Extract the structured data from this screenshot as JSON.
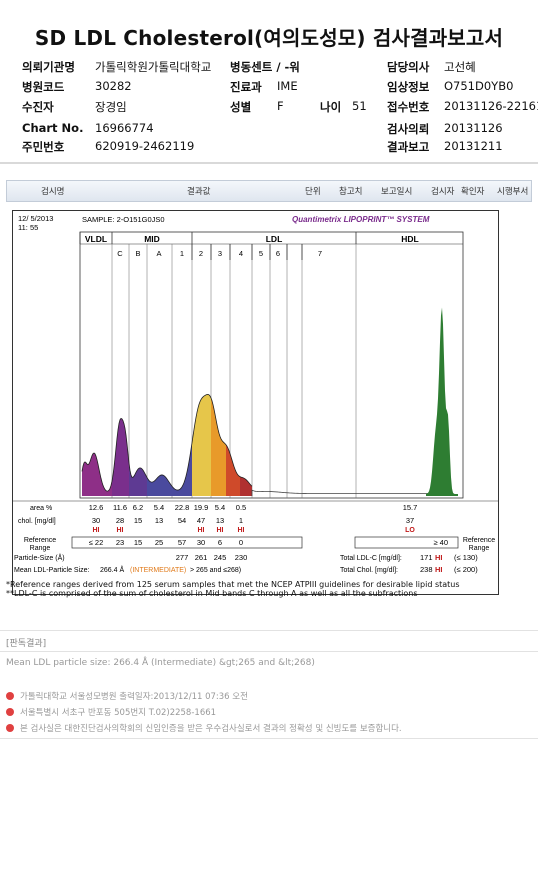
{
  "title": "SD LDL Cholesterol(여의도성모) 검사결과보고서",
  "header": {
    "institution_label": "의뢰기관명",
    "institution": "가톨릭학원가톨릭대학교",
    "ward_label": "병동센트 / -워",
    "ward": "",
    "doctor_label": "담당의사",
    "doctor": "고선혜",
    "hospital_code_label": "병원코드",
    "hospital_code": "30282",
    "dept_label": "진료과",
    "dept": "IME",
    "clinical_info_label": "임상정보",
    "clinical_info": "O751D0YB0",
    "patient_label": "수진자",
    "patient": "장경임",
    "sex_label": "성별",
    "sex": "F",
    "age_label": "나이",
    "age": "51",
    "receipt_label": "접수번호",
    "receipt": "20131126-22161",
    "chart_label": "Chart No.",
    "chart": "16966774",
    "request_label": "검사의뢰",
    "request": "20131126",
    "resident_label": "주민번호",
    "resident": "620919-2462119",
    "report_label": "결과보고",
    "report": "20131211"
  },
  "tabs": [
    "검시명",
    "결과값",
    "단위",
    "참고치",
    "보고일시",
    "검시자",
    "확인자",
    "시행부서"
  ],
  "chart_data": {
    "type": "area",
    "date": "12/ 5/2013",
    "time": "11: 55",
    "sample": "SAMPLE:   2-O151G0JS0",
    "brand": "Quantimetrix LIPOPRINT™ SYSTEM",
    "regions": [
      "VLDL",
      "MID",
      "LDL",
      "HDL"
    ],
    "bands": [
      "C",
      "B",
      "A",
      "1",
      "2",
      "3",
      "4",
      "5",
      "6",
      "7"
    ],
    "area_label": "area %",
    "area": {
      "VLDL": 12.6,
      "C": 11.6,
      "B": 6.2,
      "A": 5.4,
      "1": 22.8,
      "2": 19.9,
      "3": 5.4,
      "4": 0.5,
      "HDL": 15.7
    },
    "chol_label": "chol. [mg/dl]",
    "chol": [
      {
        "band": "VLDL",
        "value": 30,
        "flag": "HI"
      },
      {
        "band": "C",
        "value": 28,
        "flag": "HI"
      },
      {
        "band": "B",
        "value": 15,
        "flag": ""
      },
      {
        "band": "A",
        "value": 13,
        "flag": ""
      },
      {
        "band": "1",
        "value": 54,
        "flag": ""
      },
      {
        "band": "2",
        "value": 47,
        "flag": "HI"
      },
      {
        "band": "3",
        "value": 13,
        "flag": "HI"
      },
      {
        "band": "4",
        "value": 1,
        "flag": "HI"
      },
      {
        "band": "HDL",
        "value": 37,
        "flag": "LO"
      }
    ],
    "reference_label": "Reference\nRange",
    "reference": [
      "≤ 22",
      "23",
      "15",
      "25",
      "57",
      "30",
      "6",
      "0"
    ],
    "reference_hdl": "≥ 40",
    "particle_size_label": "Particle-Size (Å)",
    "particle_size": [
      "277",
      "261",
      "245",
      "230"
    ],
    "mean_ldl_label": "Mean LDL-Particle Size:",
    "mean_ldl": "266.4 Å",
    "mean_ldl_class": "(INTERMEDIATE)",
    "mean_ldl_ref": "> 265 and ≤268)",
    "total_ldl_label": "Total LDL-C [mg/dl]:",
    "total_ldl": "171",
    "total_ldl_flag": "HI",
    "total_ldl_ref": "(≤ 130)",
    "total_chol_label": "Total Chol. [mg/dl]:",
    "total_chol": "238",
    "total_chol_flag": "HI",
    "total_chol_ref": "(≤ 200)",
    "colors": {
      "VLDL": "#8e2f87",
      "C": "#7a2f8c",
      "B": "#5e3a93",
      "A": "#4a4a9e",
      "1": "#e6c64a",
      "2": "#e89a2a",
      "3": "#cf4a2a",
      "4": "#b03030",
      "HDL": "#2e7d32"
    }
  },
  "footnote1": "*Reference ranges derived from 125 serum samples that met the NCEP ATPIII guidelines for desirable lipid status",
  "footnote2": "**LDL-C is comprised of the sum of cholesterol in Mid bands C through A as well as all the subfractions",
  "judgement_title": "[판독결과]",
  "judgement_text": "Mean LDL particle size: 266.4 Å (Intermediate) &gt;265 and &lt;268)",
  "footer": [
    "가톨릭대학교 서울성모병원        출력일자:2013/12/11 07:36 오전",
    "서울특별시 서초구 반포동 505번지 T.02)2258-1661",
    "본 검사실은 대한진단검사의학회의 신임인증을 받은 우수검사실로서 결과의 정확성 및 신빙도를 보증합니다."
  ]
}
